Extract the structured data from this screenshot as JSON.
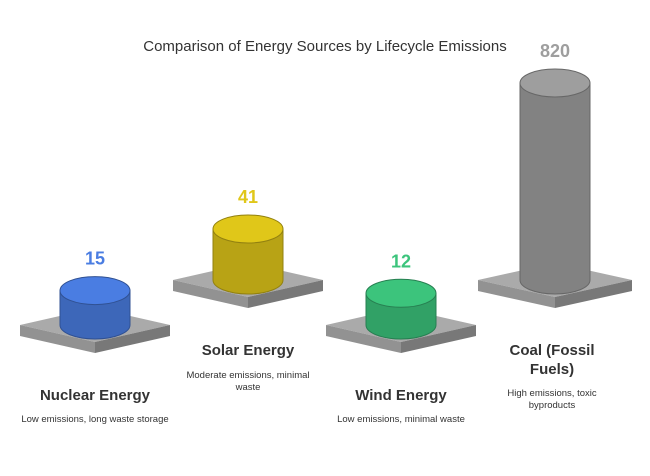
{
  "chart_data": {
    "type": "bar",
    "title": "Comparison of Energy Sources by Lifecycle Emissions",
    "categories": [
      "Nuclear Energy",
      "Solar Energy",
      "Wind Energy",
      "Coal (Fossil Fuels)"
    ],
    "values": [
      15,
      41,
      12,
      820
    ],
    "value_labels": [
      "15",
      "41",
      "12",
      "820"
    ],
    "descriptions": [
      "Low emissions, long waste storage",
      "Moderate emissions, minimal waste",
      "Low emissions, minimal waste",
      "High emissions, toxic byproducts"
    ],
    "colors": [
      "#4a7de2",
      "#e0c719",
      "#3cc47c",
      "#9e9e9e"
    ],
    "value_colors": [
      "#4a7de2",
      "#e0c719",
      "#3cc47c",
      "#9e9e9e"
    ],
    "platform_color": "#a6a6a6",
    "grid": false,
    "legend": "none"
  }
}
